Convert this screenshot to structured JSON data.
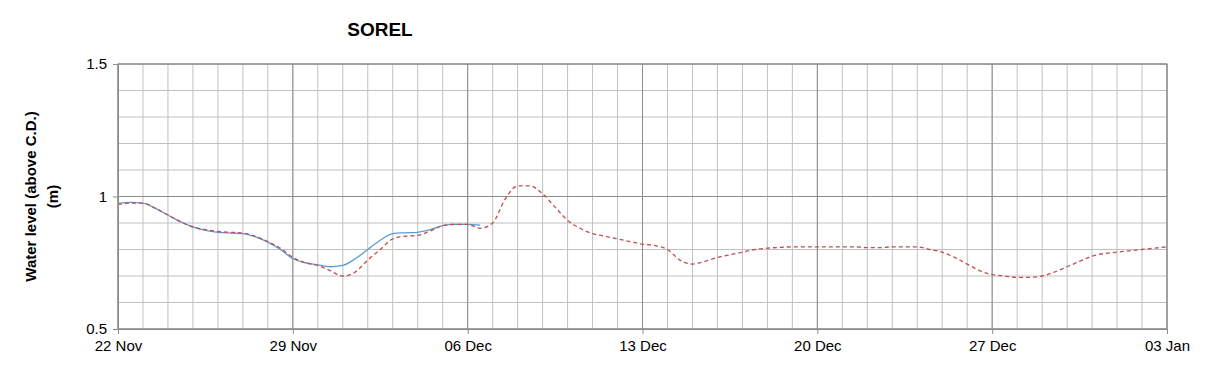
{
  "chart_data": {
    "type": "line",
    "title": "SOREL",
    "ylabel": [
      "Water level (above C.D.)",
      "(m)"
    ],
    "x": [
      0,
      0.5,
      1,
      1.5,
      2,
      2.5,
      3,
      3.5,
      4,
      4.5,
      5,
      5.5,
      6,
      6.5,
      7,
      7.5,
      8,
      8.5,
      9,
      9.5,
      10,
      10.5,
      11,
      11.5,
      12,
      12.5,
      13,
      13.5,
      14,
      14.5,
      15,
      15.5,
      16,
      16.5,
      17,
      17.5,
      18,
      18.5,
      19,
      19.5,
      20,
      20.5,
      21,
      21.5,
      22,
      22.5,
      23,
      23.5,
      24,
      24.5,
      25,
      25.5,
      26,
      26.5,
      27,
      27.5,
      28,
      28.5,
      29,
      29.5,
      30,
      30.5,
      31,
      31.5,
      32,
      32.5,
      33,
      33.5,
      34,
      34.5,
      35,
      35.5,
      36,
      36.5,
      37,
      37.5,
      38,
      38.5,
      39,
      39.5,
      40,
      40.5,
      41,
      41.5,
      42
    ],
    "xlim": [
      0,
      42
    ],
    "xticks": [
      {
        "value": 0,
        "label": "22 Nov"
      },
      {
        "value": 7,
        "label": "29 Nov"
      },
      {
        "value": 14,
        "label": "06 Dec"
      },
      {
        "value": 21,
        "label": "13 Dec"
      },
      {
        "value": 28,
        "label": "20 Dec"
      },
      {
        "value": 35,
        "label": "27 Dec"
      },
      {
        "value": 42,
        "label": "03 Jan"
      }
    ],
    "ylim": [
      0.5,
      1.5
    ],
    "yticks": [
      0.5,
      1,
      1.5
    ],
    "grid": true,
    "series": [
      {
        "color": "#5b9bd5",
        "line_style": "solid",
        "values": [
          0.975,
          0.978,
          0.975,
          0.955,
          0.93,
          0.905,
          0.885,
          0.872,
          0.865,
          0.862,
          0.86,
          0.848,
          0.828,
          0.8,
          0.765,
          0.75,
          0.742,
          0.735,
          0.74,
          0.765,
          0.8,
          0.835,
          0.86,
          0.863,
          0.865,
          0.875,
          0.89,
          0.895,
          0.895,
          0.892,
          null,
          null,
          null,
          null,
          null,
          null,
          null,
          null,
          null,
          null,
          null,
          null,
          null,
          null,
          null,
          null,
          null,
          null,
          null,
          null,
          null,
          null,
          null,
          null,
          null,
          null,
          null,
          null,
          null,
          null,
          null,
          null,
          null,
          null,
          null,
          null,
          null,
          null,
          null,
          null,
          null,
          null,
          null,
          null,
          null,
          null,
          null,
          null,
          null,
          null,
          null,
          null,
          null,
          null,
          null
        ]
      },
      {
        "color": "#c0504d",
        "line_style": "dashed",
        "values": [
          0.97,
          0.975,
          0.975,
          0.955,
          0.93,
          0.905,
          0.885,
          0.875,
          0.868,
          0.865,
          0.862,
          0.85,
          0.83,
          0.805,
          0.77,
          0.75,
          0.74,
          0.72,
          0.7,
          0.715,
          0.76,
          0.8,
          0.84,
          0.85,
          0.853,
          0.87,
          0.89,
          0.895,
          0.895,
          0.88,
          0.9,
          0.99,
          1.04,
          1.04,
          1.01,
          0.96,
          0.91,
          0.88,
          0.86,
          0.85,
          0.84,
          0.83,
          0.82,
          0.815,
          0.8,
          0.76,
          0.745,
          0.755,
          0.77,
          0.78,
          0.79,
          0.8,
          0.805,
          0.808,
          0.81,
          0.81,
          0.81,
          0.81,
          0.81,
          0.81,
          0.807,
          0.807,
          0.81,
          0.81,
          0.81,
          0.8,
          0.79,
          0.77,
          0.745,
          0.72,
          0.705,
          0.7,
          0.695,
          0.695,
          0.7,
          0.715,
          0.735,
          0.755,
          0.775,
          0.785,
          0.79,
          0.795,
          0.8,
          0.805,
          0.81
        ]
      }
    ]
  }
}
